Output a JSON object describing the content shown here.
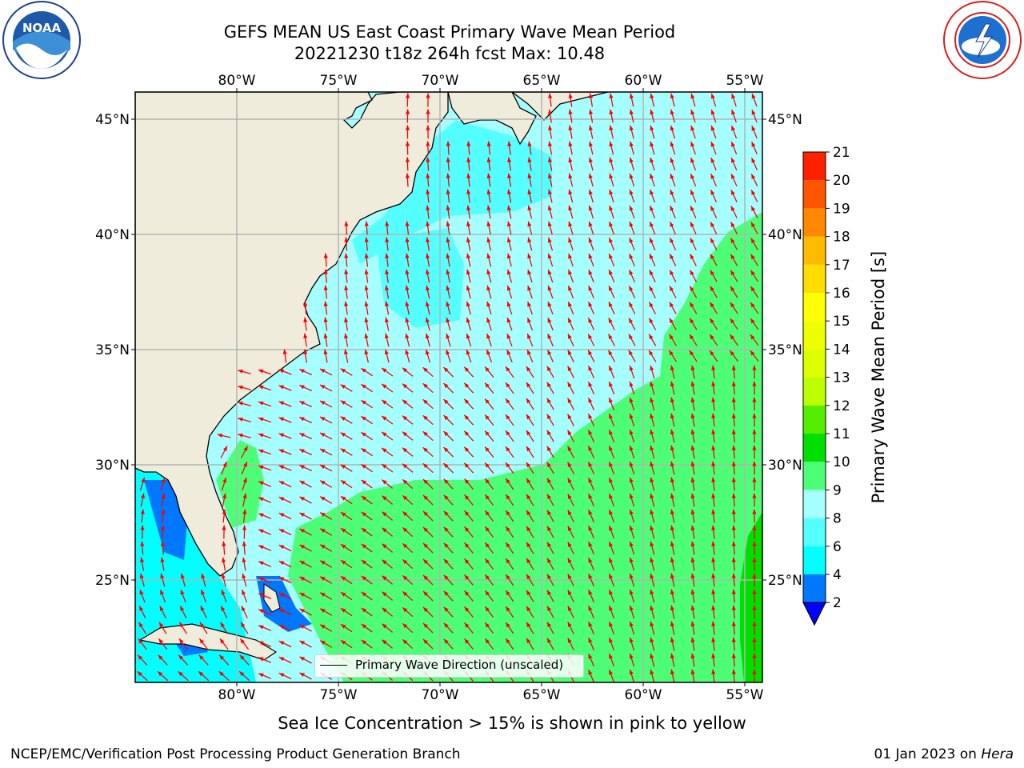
{
  "header": {
    "title_line1": "GEFS MEAN US East Coast Primary Wave Mean Period",
    "title_line2": "20221230 t18z 264h fcst   Max: 10.48"
  },
  "logos": {
    "left": {
      "name": "noaa-logo",
      "text": "NOAA",
      "ring_text": "NATIONAL OCEANIC AND ATMOSPHERIC ADMINISTRATION · U.S. DEPARTMENT OF COMMERCE"
    },
    "right": {
      "name": "nws-logo",
      "ring_text": "NATIONAL WEATHER SERVICE"
    }
  },
  "map": {
    "lon_labels": [
      "80°W",
      "75°W",
      "70°W",
      "65°W",
      "60°W",
      "55°W"
    ],
    "lat_labels": [
      "45°N",
      "40°N",
      "35°N",
      "30°N",
      "25°N"
    ],
    "colors": {
      "land": "#efecdc",
      "frame": "#000000",
      "grid": "#b3b3b3",
      "arrow": "#ff0000",
      "period_7": "#00ffff",
      "period_8": "#55ffff",
      "period_9": "#a6ffff",
      "period_10": "#4dff77",
      "period_11": "#00e000",
      "period_4": "#0077ff",
      "ice_note_colors": "pink to yellow"
    },
    "legend_label": "Primary Wave Direction (unscaled)"
  },
  "colorbar": {
    "label": "Primary Wave Mean Period [s]",
    "ticks": [
      "2",
      "4",
      "6",
      "8",
      "9",
      "10",
      "11",
      "12",
      "13",
      "14",
      "15",
      "16",
      "17",
      "18",
      "19",
      "20",
      "21"
    ],
    "colors": [
      "#0077ff",
      "#00ffff",
      "#55ffff",
      "#a6ffff",
      "#4dff77",
      "#00e000",
      "#55ee00",
      "#bbff00",
      "#ddff00",
      "#eeff00",
      "#ffff00",
      "#ffdd00",
      "#ffbb00",
      "#ff8800",
      "#ff5500",
      "#ff2200"
    ],
    "extend_color": "#0000ff"
  },
  "footer": {
    "ice_note": "Sea Ice Concentration > 15% is shown in pink to yellow",
    "branch": "NCEP/EMC/Verification Post Processing Product Generation Branch",
    "date": "01 Jan 2023 on",
    "host": "Hera"
  }
}
